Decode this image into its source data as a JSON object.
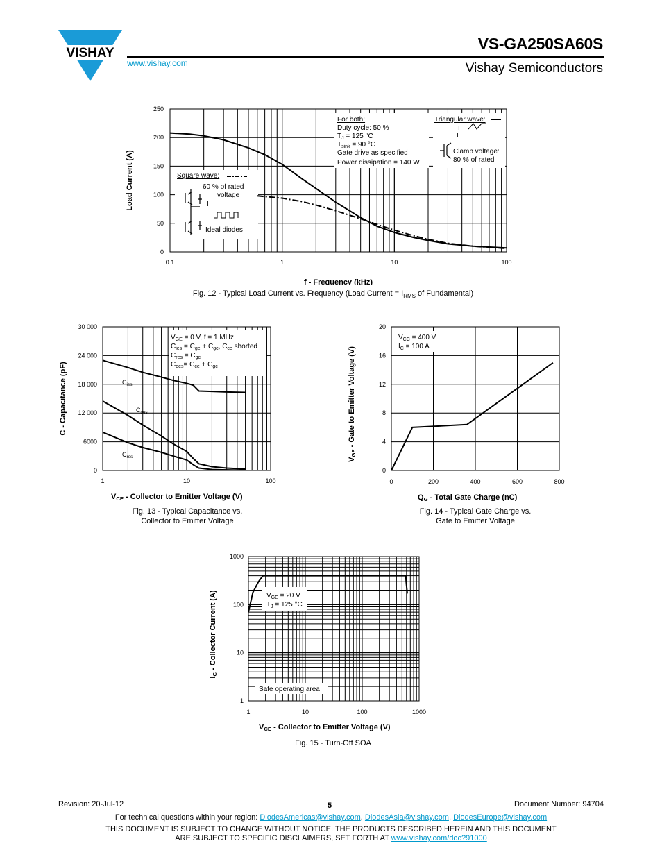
{
  "header": {
    "brand": "VISHAY",
    "url": "www.vishay.com",
    "part_number": "VS-GA250SA60S",
    "company": "Vishay Semiconductors",
    "brand_color": "#1a9bd7"
  },
  "figures": [
    {
      "caption_pre": "Fig. 12 - Typical Load Current vs. Frequency (Load Current = I",
      "caption_sub": "RMS",
      "caption_post": " of Fundamental)"
    },
    {
      "caption_line1": "Fig. 13 - Typical Capacitance vs.",
      "caption_line2": "Collector to Emitter Voltage"
    },
    {
      "caption_line1": "Fig. 14 - Typical Gate Charge vs.",
      "caption_line2": "Gate to Emitter Voltage"
    },
    {
      "caption": "Fig. 15 - Turn-Off SOA"
    }
  ],
  "chart_data": [
    {
      "type": "line",
      "id": "fig12",
      "xscale": "log",
      "xlim": [
        0.1,
        100
      ],
      "ylim": [
        0,
        250
      ],
      "xticks": [
        "0.1",
        "1",
        "10",
        "100"
      ],
      "yticks": [
        "0",
        "50",
        "100",
        "150",
        "200",
        "250"
      ],
      "xlabel": "f - Frequency (kHz)",
      "ylabel": "Load Current (A)",
      "series": [
        {
          "name": "Triangular wave",
          "style": "solid",
          "x": [
            0.1,
            0.15,
            0.2,
            0.3,
            0.5,
            0.7,
            1,
            1.5,
            2,
            3,
            5,
            7,
            10,
            15,
            20,
            30,
            50,
            100
          ],
          "y": [
            208,
            206,
            203,
            196,
            182,
            170,
            153,
            128,
            111,
            87,
            60,
            45,
            34,
            25,
            20,
            14,
            10,
            7
          ]
        },
        {
          "name": "Square wave",
          "style": "dashdot",
          "x": [
            0.6,
            1,
            1.5,
            2,
            3,
            5,
            7,
            10,
            15,
            20,
            30,
            50,
            100
          ],
          "y": [
            98,
            94,
            88,
            82,
            72,
            58,
            48,
            38,
            28,
            22,
            15,
            10,
            6
          ]
        }
      ],
      "annotations": {
        "for_both": "For both:",
        "duty": "Duty cycle: 50 %",
        "tj_pre": "T",
        "tj_sub": "J",
        "tj_post": " = 125 °C",
        "ts_pre": "T",
        "ts_sub": "sink",
        "ts_post": " = 90 °C",
        "gate": "Gate drive as specified",
        "power": "Power dissipation = 140 W",
        "triangular": "Triangular wave:",
        "clamp1": "Clamp voltage:",
        "clamp2": "80 % of rated",
        "square": "Square wave:",
        "rated1": "60 % of rated",
        "rated2": "voltage",
        "ideal": "Ideal diodes",
        "i": "I"
      }
    },
    {
      "type": "line",
      "id": "fig13",
      "xscale": "log",
      "xlim": [
        1,
        100
      ],
      "ylim": [
        0,
        30000
      ],
      "xticks": [
        "1",
        "10",
        "100"
      ],
      "yticks": [
        "0",
        "6000",
        "12 000",
        "18 000",
        "24 000",
        "30 000"
      ],
      "xlabel_pre": "V",
      "xlabel_sub": "CE",
      "xlabel_post": " - Collector to Emitter Voltage (V)",
      "ylabel": "C - Capacitance (pF)",
      "series": [
        {
          "name": "Cies",
          "x": [
            1,
            2,
            3,
            5,
            7,
            10,
            12,
            14,
            20,
            30,
            50
          ],
          "y": [
            23000,
            21500,
            20500,
            19500,
            18800,
            18200,
            17800,
            16600,
            16500,
            16400,
            16300
          ]
        },
        {
          "name": "Coes",
          "x": [
            1,
            2,
            3,
            5,
            7,
            10,
            12,
            14,
            20,
            30,
            50
          ],
          "y": [
            14500,
            11500,
            9500,
            7200,
            5500,
            4000,
            2500,
            1400,
            800,
            500,
            300
          ]
        },
        {
          "name": "Cres",
          "x": [
            1,
            2,
            3,
            5,
            7,
            10,
            12,
            14,
            20,
            30,
            50
          ],
          "y": [
            8000,
            5800,
            4800,
            3800,
            3000,
            2200,
            1200,
            500,
            200,
            120,
            80
          ]
        }
      ],
      "annotations": {
        "l1": "V",
        "l1s": "GE",
        "l1p": " = 0 V, f = 1 MHz",
        "l2": "C",
        "l2s": "ies",
        "l2a": " = C",
        "l2b": "ge",
        "l2c": " + C",
        "l2d": "gc",
        "l2e": ", C",
        "l2f": "ce",
        "l2g": " shorted",
        "l3": "C",
        "l3s": "res",
        "l3a": " = C",
        "l3b": "gc",
        "l4": "C",
        "l4s": "oes",
        "l4a": "= C",
        "l4b": "ce",
        "l4c": " + C",
        "l4d": "gc",
        "cies": "C",
        "cies_s": "ies",
        "coes": "C",
        "coes_s": "oes",
        "cres": "C",
        "cres_s": "res"
      }
    },
    {
      "type": "line",
      "id": "fig14",
      "xscale": "linear",
      "xlim": [
        0,
        800
      ],
      "ylim": [
        0,
        20
      ],
      "xticks": [
        "0",
        "200",
        "400",
        "600",
        "800"
      ],
      "yticks": [
        "0",
        "4",
        "8",
        "12",
        "16",
        "20"
      ],
      "xlabel_pre": "Q",
      "xlabel_sub": "G",
      "xlabel_post": " - Total Gate Charge (nC)",
      "ylabel_pre": "V",
      "ylabel_sub": "GE",
      "ylabel_post": " - Gate to Emitter Voltage (V)",
      "series": [
        {
          "name": "VGE",
          "x": [
            0,
            100,
            360,
            770
          ],
          "y": [
            0,
            6,
            6.4,
            15
          ]
        }
      ],
      "annotations": {
        "vcc": "V",
        "vcc_s": "CC",
        "vcc_p": " = 400 V",
        "ic": "I",
        "ic_s": "C",
        "ic_p": " = 100 A"
      }
    },
    {
      "type": "line",
      "id": "fig15",
      "xscale": "log",
      "yscale": "log",
      "xlim": [
        1,
        1000
      ],
      "ylim": [
        1,
        1000
      ],
      "xticks": [
        "1",
        "10",
        "100",
        "1000"
      ],
      "yticks": [
        "1",
        "10",
        "100",
        "1000"
      ],
      "xlabel_pre": "V",
      "xlabel_sub": "CE",
      "xlabel_post": " - Collector to Emitter Voltage (V)",
      "ylabel_pre": "I",
      "ylabel_sub": "C",
      "ylabel_post": " - Collector Current (A)",
      "series": [
        {
          "name": "SOA boundary",
          "x": [
            1,
            1.2,
            1.5,
            1.8,
            2,
            580,
            600,
            620
          ],
          "y": [
            70,
            180,
            300,
            400,
            400,
            400,
            250,
            170
          ]
        }
      ],
      "annotations": {
        "vge": "V",
        "vge_s": "GE",
        "vge_p": " = 20 V",
        "tj": "T",
        "tj_s": "J",
        "tj_p": " = 125 °C",
        "safe": "Safe operating area"
      }
    }
  ],
  "footer": {
    "revision": "Revision: 20-Jul-12",
    "page": "5",
    "doc_number": "Document Number: 94704",
    "questions": "For technical questions within your region: ",
    "email1": "DiodesAmericas@vishay.com",
    "email2": "DiodesAsia@vishay.com",
    "email3": "DiodesEurope@vishay.com",
    "sep": ", ",
    "notice1": "THIS DOCUMENT IS SUBJECT TO CHANGE WITHOUT NOTICE. THE PRODUCTS DESCRIBED HEREIN AND THIS DOCUMENT",
    "notice2": "ARE SUBJECT TO SPECIFIC DISCLAIMERS, SET FORTH AT ",
    "disclaimer_url": "www.vishay.com/doc?91000"
  }
}
